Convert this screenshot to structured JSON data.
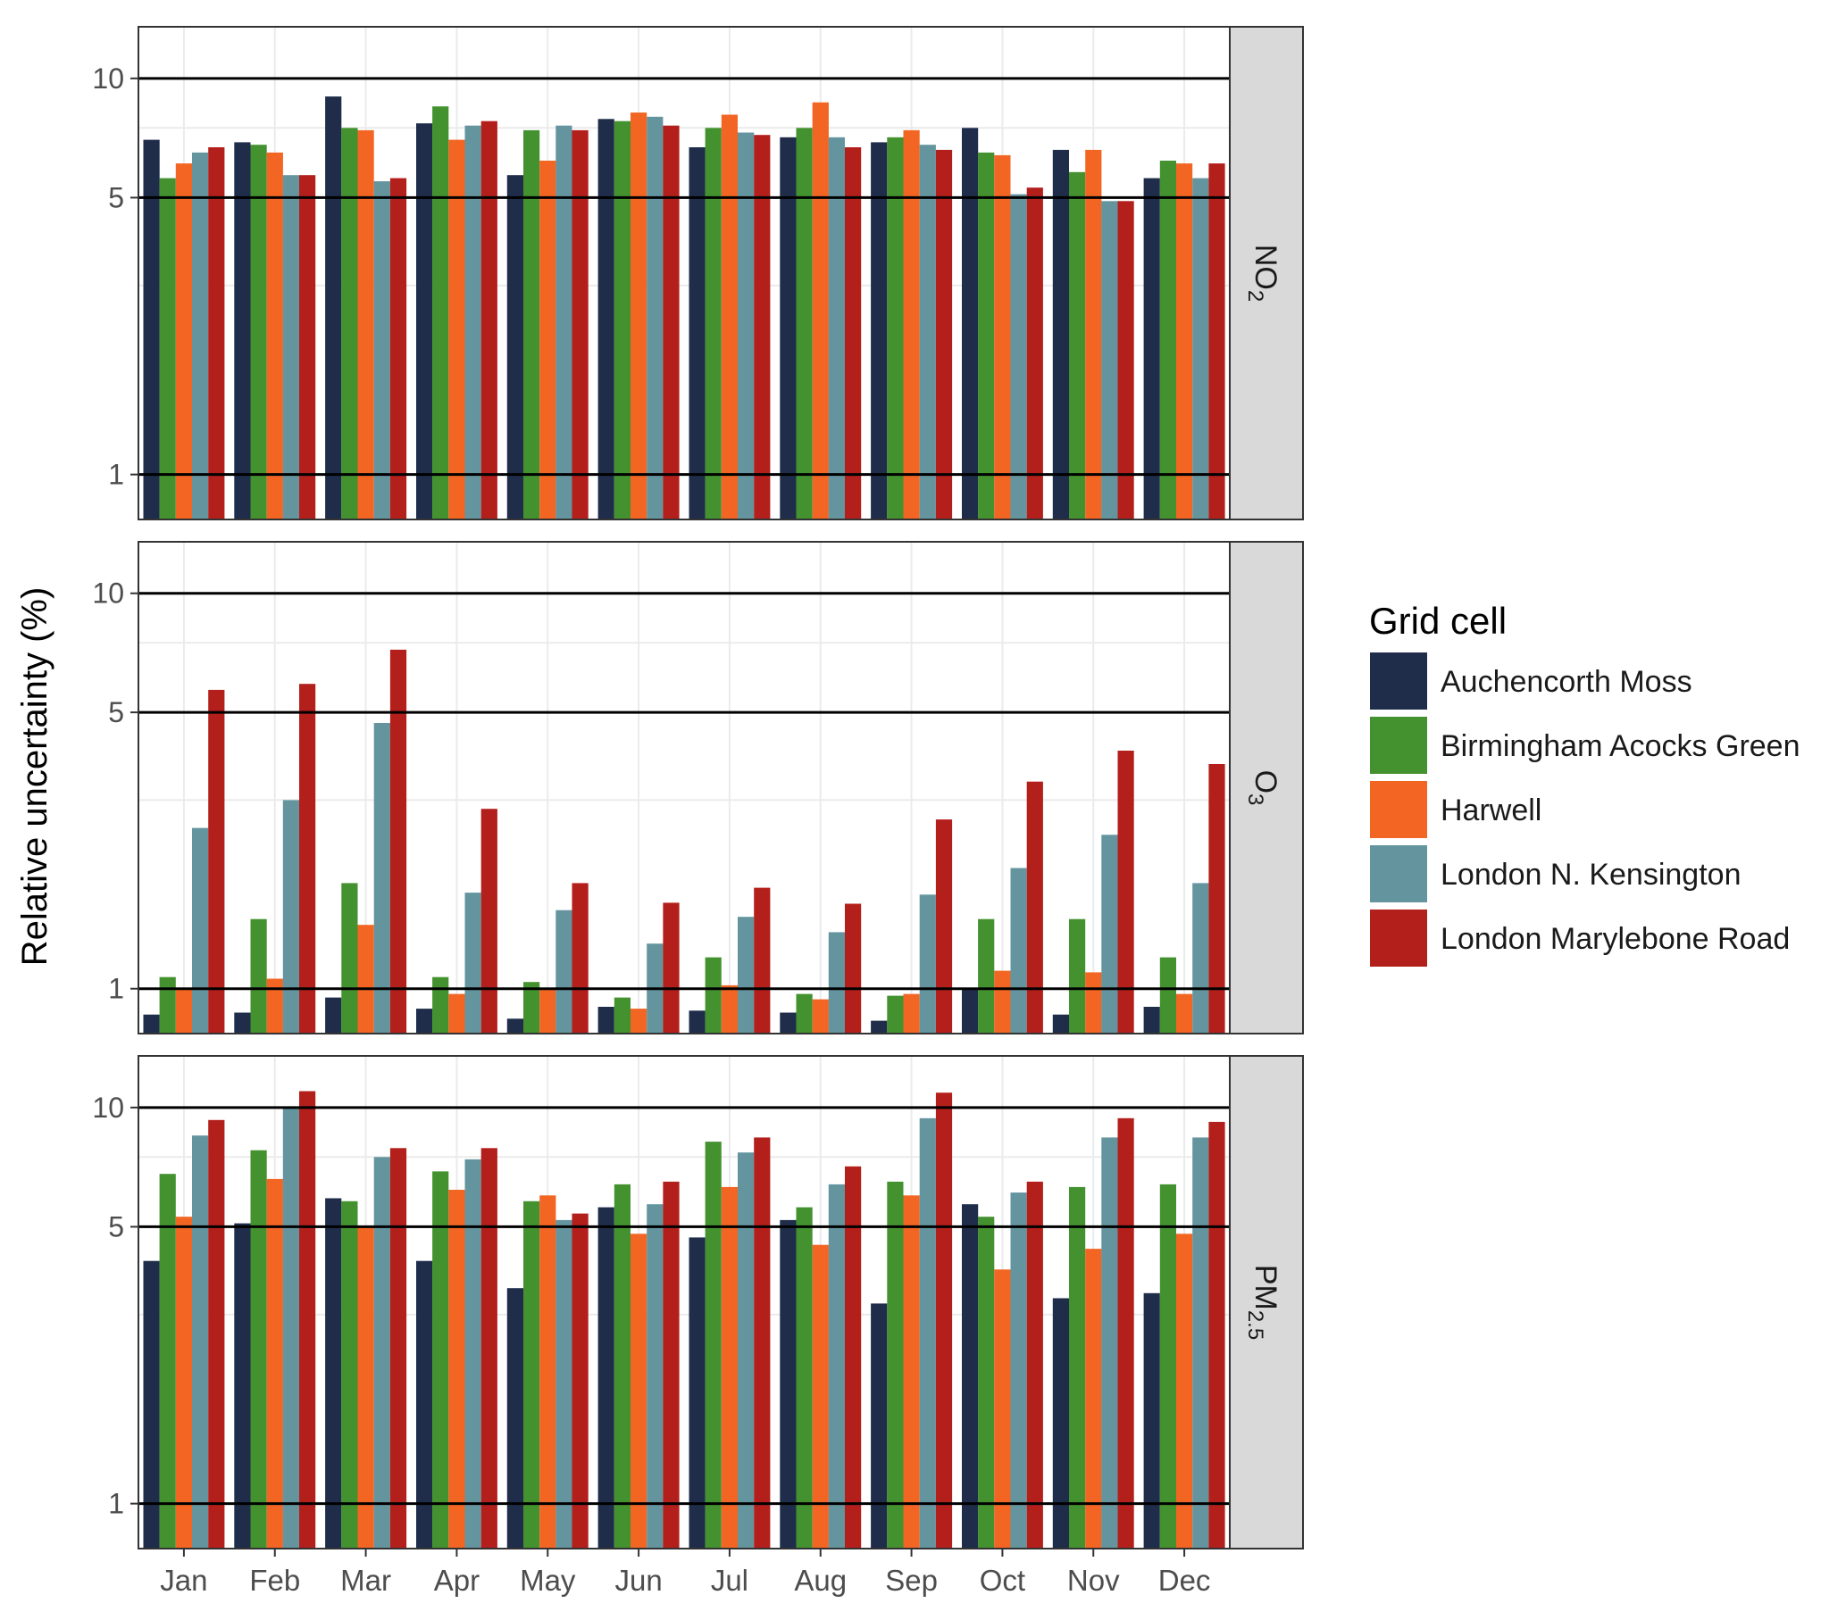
{
  "chart_data": {
    "type": "bar",
    "ylabel": "Relative uncertainty (%)",
    "categories": [
      "Jan",
      "Feb",
      "Mar",
      "Apr",
      "May",
      "Jun",
      "Jul",
      "Aug",
      "Sep",
      "Oct",
      "Nov",
      "Dec"
    ],
    "y_scale": "log",
    "y_ticks": [
      1,
      5,
      10
    ],
    "legend": {
      "title": "Grid cell",
      "position": "right"
    },
    "series_names": [
      "Auchencorth Moss",
      "Birmingham Acocks Green",
      "Harwell",
      "London N. Kensington",
      "London Marylebone Road"
    ],
    "series_colors": [
      "#1f2d4a",
      "#43922f",
      "#f26522",
      "#64959f",
      "#b31f1b"
    ],
    "grid": true,
    "panels": [
      {
        "strip_main": "NO",
        "strip_sub": "2",
        "ylim": [
          0.77,
          13.5
        ],
        "values": [
          [
            7.0,
            5.6,
            6.1,
            6.5,
            6.7
          ],
          [
            6.9,
            6.8,
            6.5,
            5.7,
            5.7
          ],
          [
            9.0,
            7.5,
            7.4,
            5.5,
            5.6
          ],
          [
            7.7,
            8.5,
            7.0,
            7.6,
            7.8
          ],
          [
            5.7,
            7.4,
            6.2,
            7.6,
            7.4
          ],
          [
            7.9,
            7.8,
            8.2,
            8.0,
            7.6
          ],
          [
            6.7,
            7.5,
            8.1,
            7.3,
            7.2
          ],
          [
            7.1,
            7.5,
            8.7,
            7.1,
            6.7
          ],
          [
            6.9,
            7.1,
            7.4,
            6.8,
            6.6
          ],
          [
            7.5,
            6.5,
            6.4,
            5.1,
            5.3
          ],
          [
            6.6,
            5.8,
            6.6,
            4.9,
            4.9
          ],
          [
            5.6,
            6.2,
            6.1,
            5.6,
            6.1
          ]
        ]
      },
      {
        "strip_main": "O",
        "strip_sub": "3",
        "ylim": [
          0.77,
          13.5
        ],
        "values": [
          [
            0.86,
            1.07,
            1.0,
            2.55,
            5.7
          ],
          [
            0.87,
            1.5,
            1.06,
            3.0,
            5.9
          ],
          [
            0.95,
            1.85,
            1.45,
            4.7,
            7.2
          ],
          [
            0.89,
            1.07,
            0.97,
            1.75,
            2.85
          ],
          [
            0.84,
            1.04,
            1.0,
            1.58,
            1.85
          ],
          [
            0.9,
            0.95,
            0.89,
            1.3,
            1.65
          ],
          [
            0.88,
            1.2,
            1.02,
            1.52,
            1.8
          ],
          [
            0.87,
            0.97,
            0.94,
            1.39,
            1.64
          ],
          [
            0.83,
            0.96,
            0.97,
            1.73,
            2.68
          ],
          [
            1.0,
            1.5,
            1.11,
            2.02,
            3.34
          ],
          [
            0.86,
            1.5,
            1.1,
            2.45,
            4.0
          ],
          [
            0.9,
            1.2,
            0.97,
            1.85,
            3.7
          ]
        ]
      },
      {
        "strip_main": "PM",
        "strip_sub": "2.5",
        "ylim": [
          0.77,
          13.5
        ],
        "values": [
          [
            4.1,
            6.8,
            5.3,
            8.5,
            9.3
          ],
          [
            5.1,
            7.8,
            6.6,
            10.0,
            11.0
          ],
          [
            5.9,
            5.8,
            5.0,
            7.5,
            7.9
          ],
          [
            4.1,
            6.9,
            6.2,
            7.4,
            7.9
          ],
          [
            3.5,
            5.8,
            6.0,
            5.2,
            5.4
          ],
          [
            5.6,
            6.4,
            4.8,
            5.7,
            6.5
          ],
          [
            4.7,
            8.2,
            6.3,
            7.7,
            8.4
          ],
          [
            5.2,
            5.6,
            4.5,
            6.4,
            7.1
          ],
          [
            3.2,
            6.5,
            6.0,
            9.4,
            10.9
          ],
          [
            5.7,
            5.3,
            3.9,
            6.1,
            6.5
          ],
          [
            3.3,
            6.3,
            4.4,
            8.4,
            9.4
          ],
          [
            3.4,
            6.4,
            4.8,
            8.4,
            9.2
          ]
        ]
      }
    ]
  }
}
